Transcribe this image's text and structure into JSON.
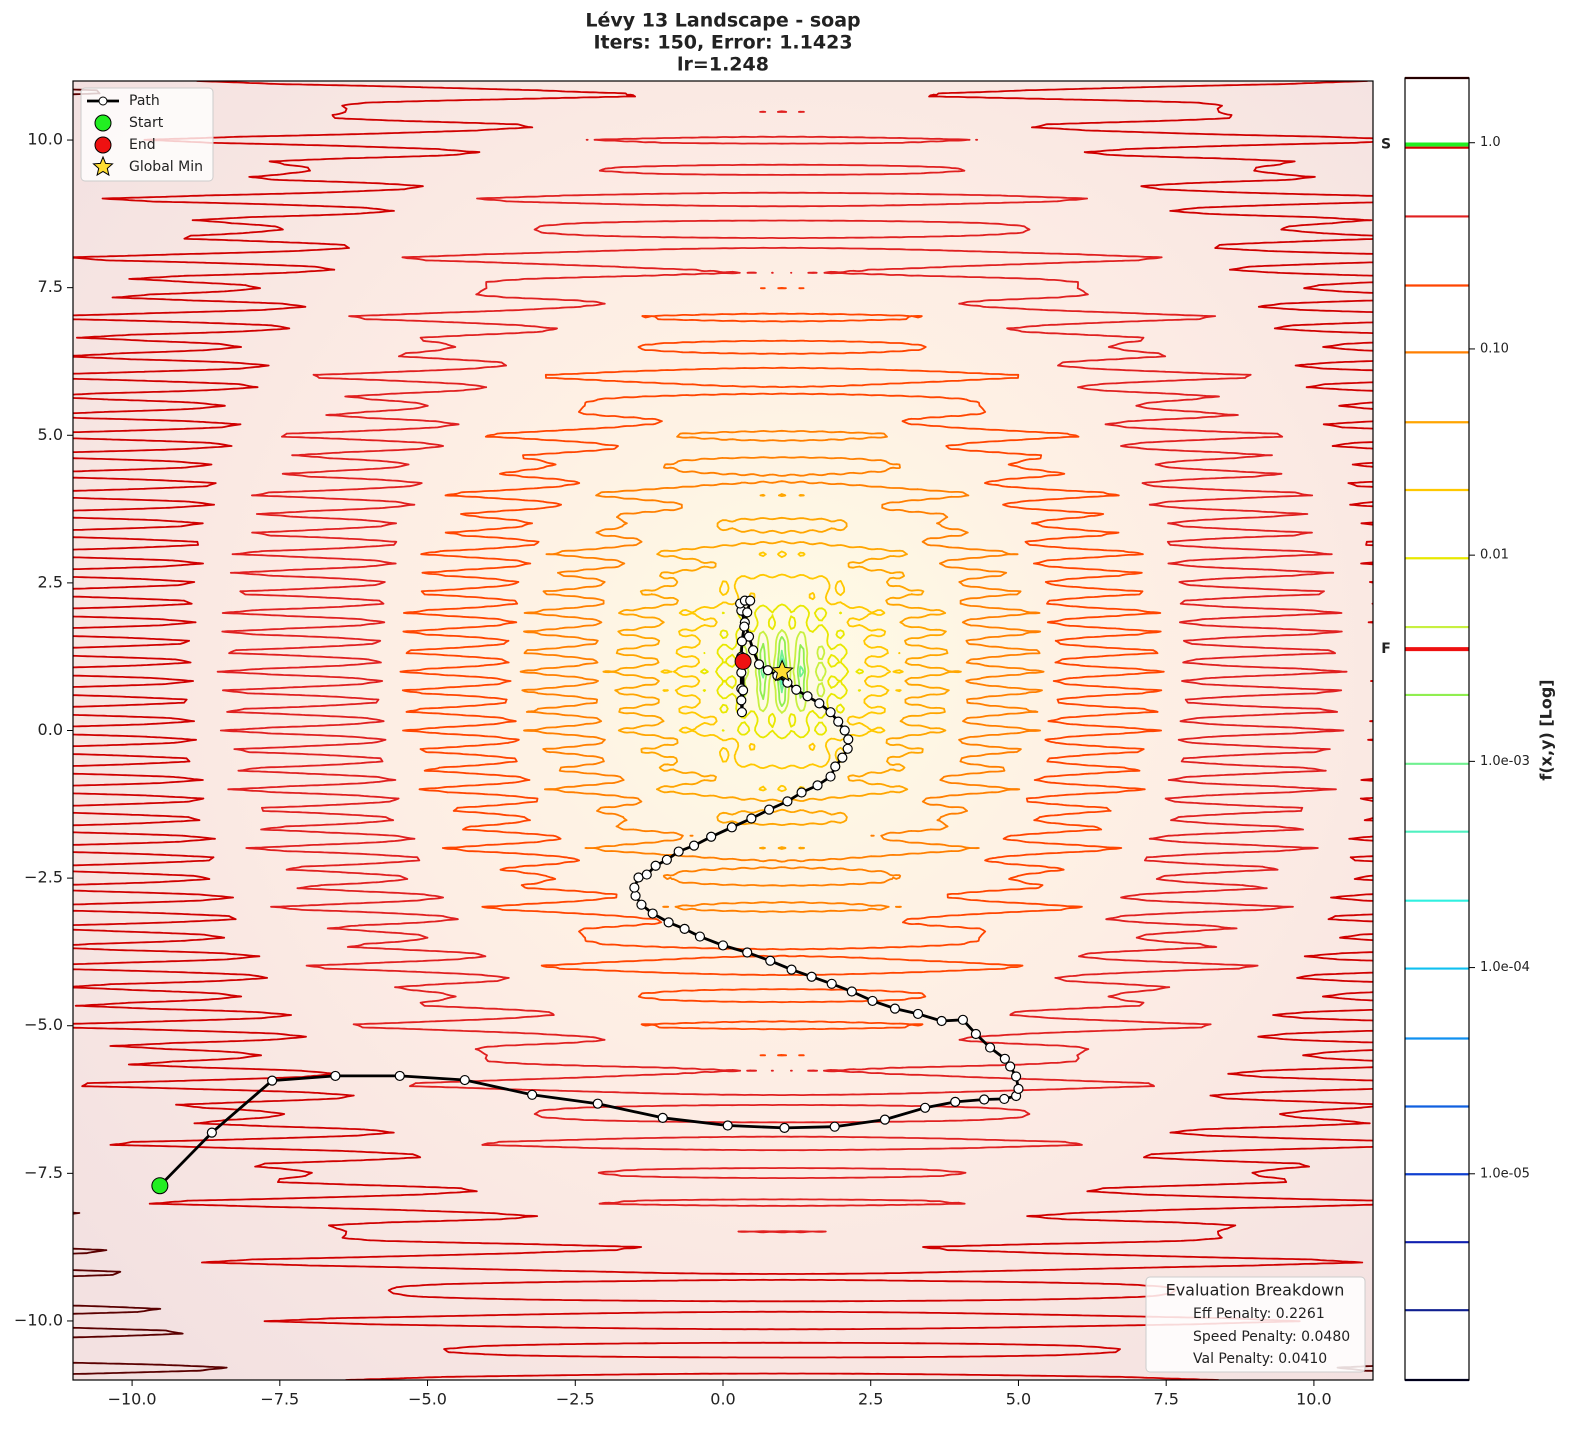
{
  "chart_data": {
    "type": "contour",
    "title": "Lévy 13 Landscape - soap",
    "subtitle": [
      "Iters: 150, Error: 1.1423",
      "lr=1.248"
    ],
    "xlim": [
      -11,
      11
    ],
    "ylim": [
      -11,
      11
    ],
    "xticks": [
      {
        "value": -10,
        "label": "−10.0"
      },
      {
        "value": -7.5,
        "label": "−7.5"
      },
      {
        "value": -5,
        "label": "−5.0"
      },
      {
        "value": -2.5,
        "label": "−2.5"
      },
      {
        "value": 0,
        "label": "0.0"
      },
      2.5,
      {
        "value": 5,
        "label": "5.0"
      },
      7.5,
      {
        "value": 10,
        "label": "10.0"
      }
    ],
    "yticks": [
      {
        "value": -10,
        "label": "−10.0"
      },
      {
        "value": -7.5,
        "label": "−7.5"
      },
      {
        "value": -5,
        "label": "−5.0"
      },
      {
        "value": -2.5,
        "label": "−2.5"
      },
      {
        "value": 0,
        "label": "0.0"
      },
      2.5,
      {
        "value": 5,
        "label": "5.0"
      },
      7.5,
      {
        "value": 10,
        "label": "10.0"
      }
    ],
    "series": [
      {
        "name": "Path",
        "color": "#000000",
        "x": [
          -9.53,
          -8.65,
          -7.63,
          -6.56,
          -5.47,
          -4.37,
          -3.23,
          -2.12,
          -1.02,
          0.08,
          1.04,
          1.89,
          2.74,
          3.42,
          3.93,
          4.42,
          4.76,
          4.96,
          5.0,
          4.96,
          4.86,
          4.77,
          4.52,
          4.28,
          4.06,
          3.7,
          3.3,
          2.91,
          2.53,
          2.18,
          1.84,
          1.5,
          1.16,
          0.8,
          0.41,
          0.0,
          -0.39,
          -0.65,
          -0.92,
          -1.19,
          -1.38,
          -1.48,
          -1.5,
          -1.43,
          -1.29,
          -1.14,
          -0.95,
          -0.75,
          -0.49,
          -0.2,
          0.15,
          0.48,
          0.78,
          1.09,
          1.33,
          1.6,
          1.82,
          1.9,
          2.02,
          2.11,
          2.12,
          2.06,
          1.95,
          1.82,
          1.63,
          1.43,
          1.24,
          1.09,
          0.92,
          0.76,
          0.61,
          0.51,
          0.44,
          0.37,
          0.31,
          0.29,
          0.37,
          0.46,
          0.41,
          0.36,
          0.32,
          0.31,
          0.31,
          0.31,
          0.31,
          0.32,
          0.34,
          0.34
        ],
        "y": [
          -7.71,
          -6.81,
          -5.93,
          -5.85,
          -5.85,
          -5.92,
          -6.17,
          -6.32,
          -6.56,
          -6.69,
          -6.73,
          -6.71,
          -6.59,
          -6.39,
          -6.29,
          -6.25,
          -6.24,
          -6.19,
          -6.07,
          -5.86,
          -5.69,
          -5.56,
          -5.37,
          -5.14,
          -4.9,
          -4.92,
          -4.8,
          -4.71,
          -4.58,
          -4.42,
          -4.29,
          -4.17,
          -4.05,
          -3.9,
          -3.76,
          -3.64,
          -3.49,
          -3.36,
          -3.25,
          -3.1,
          -2.95,
          -2.8,
          -2.66,
          -2.49,
          -2.44,
          -2.29,
          -2.19,
          -2.05,
          -1.95,
          -1.8,
          -1.64,
          -1.49,
          -1.34,
          -1.2,
          -1.05,
          -0.93,
          -0.78,
          -0.61,
          -0.46,
          -0.31,
          -0.15,
          0.0,
          0.15,
          0.31,
          0.46,
          0.58,
          0.69,
          0.81,
          0.93,
          1.02,
          1.12,
          1.36,
          1.59,
          1.83,
          2.03,
          2.15,
          2.2,
          2.2,
          2.0,
          1.76,
          1.51,
          1.25,
          0.98,
          0.71,
          0.51,
          0.31,
          0.68,
          1.17
        ]
      }
    ],
    "markers": [
      {
        "name": "Start",
        "color": "#22ee22",
        "x": -9.53,
        "y": -7.71
      },
      {
        "name": "End",
        "color": "#ee1111",
        "x": 0.34,
        "y": 1.17
      },
      {
        "name": "Global Min",
        "color": "#ffdd33",
        "x": 1,
        "y": 1
      }
    ],
    "legend": "upper left",
    "colorbar": {
      "label": "f(x,y) [Log]",
      "scale": "log",
      "lim": [
        1e-06,
        2.06
      ],
      "ticks": [
        {
          "value": 1,
          "label": "1.0"
        },
        {
          "value": 0.1,
          "label": "0.10"
        },
        0.01,
        {
          "value": 0.001,
          "label": "1.0e-03"
        },
        {
          "value": 0.0001,
          "label": "1.0e-04"
        },
        {
          "value": 1e-05,
          "label": "1.0e-05"
        }
      ],
      "levels": [
        {
          "value": 1e-06,
          "color": "#000040"
        },
        {
          "value": 2.18e-06,
          "color": "#102090"
        },
        {
          "value": 4.66e-06,
          "color": "#1020b0"
        },
        {
          "value": 9.95e-06,
          "color": "#1040d0"
        },
        {
          "value": 2.12e-05,
          "color": "#1060e0"
        },
        {
          "value": 4.53e-05,
          "color": "#1090f0"
        },
        {
          "value": 9.89e-05,
          "color": "#10c0f0"
        },
        {
          "value": 0.000211,
          "color": "#30f0e0"
        },
        {
          "value": 0.000456,
          "color": "#50f0c0"
        },
        {
          "value": 0.000973,
          "color": "#70f090"
        },
        {
          "value": 0.0021,
          "color": "#90ee50"
        },
        {
          "value": 0.00448,
          "color": "#c8f040"
        },
        {
          "value": 0.00966,
          "color": "#e8e800"
        },
        {
          "value": 0.0207,
          "color": "#ffc800"
        },
        {
          "value": 0.0441,
          "color": "#ffa500"
        },
        {
          "value": 0.0962,
          "color": "#ff7f00"
        },
        {
          "value": 0.203,
          "color": "#ff4500"
        },
        {
          "value": 0.439,
          "color": "#e02020"
        },
        {
          "value": 0.946,
          "color": "#d00000"
        },
        {
          "value": 2.06,
          "color": "#5a0000"
        }
      ],
      "markers": [
        {
          "label": "S",
          "value": 0.98,
          "color": "#22ee22"
        },
        {
          "label": "F",
          "value": 0.0035,
          "color": "#ee1111"
        }
      ]
    },
    "annotation": {
      "title": "Evaluation Breakdown",
      "lines": [
        "Eff Penalty: 0.2261",
        "Speed Penalty: 0.0480",
        "Val Penalty: 0.0410"
      ]
    }
  }
}
